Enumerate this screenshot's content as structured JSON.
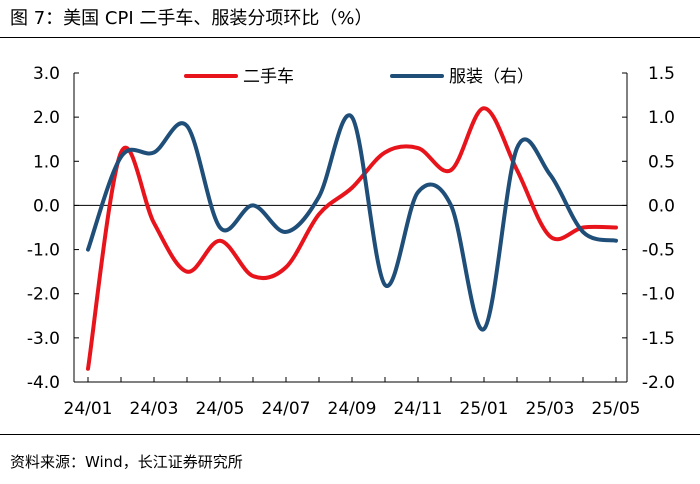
{
  "title": "图 7：美国 CPI 二手车、服装分项环比（%）",
  "source": "资料来源：Wind，长江证券研究所",
  "chart_data": {
    "type": "line",
    "title": "图 7：美国 CPI 二手车、服装分项环比（%）",
    "x": [
      "24/01",
      "24/02",
      "24/03",
      "24/04",
      "24/05",
      "24/06",
      "24/07",
      "24/08",
      "24/09",
      "24/10",
      "24/11",
      "24/12",
      "25/01",
      "25/02",
      "25/03",
      "25/04",
      "25/05"
    ],
    "x_tick_labels": [
      "24/01",
      "24/03",
      "24/05",
      "24/07",
      "24/09",
      "24/11",
      "25/01",
      "25/03",
      "25/05"
    ],
    "left_axis": {
      "ylim": [
        -4.0,
        3.0
      ],
      "ticks": [
        "3.0",
        "2.0",
        "1.0",
        "0.0",
        "-1.0",
        "-2.0",
        "-3.0",
        "-4.0"
      ]
    },
    "right_axis": {
      "ylim": [
        -2.0,
        1.5
      ],
      "ticks": [
        "1.5",
        "1.0",
        "0.5",
        "0.0",
        "-0.5",
        "-1.0",
        "-1.5",
        "-2.0"
      ]
    },
    "series": [
      {
        "name": "二手车",
        "axis": "left",
        "color": "#e8141c",
        "values": [
          -3.7,
          1.2,
          -0.4,
          -1.5,
          -0.8,
          -1.6,
          -1.4,
          -0.2,
          0.4,
          1.2,
          1.3,
          0.8,
          2.2,
          0.8,
          -0.7,
          -0.5,
          -0.5
        ]
      },
      {
        "name": "服装（右）",
        "axis": "right",
        "color": "#1f4e79",
        "values": [
          -0.5,
          0.55,
          0.6,
          0.9,
          -0.25,
          0.0,
          -0.3,
          0.1,
          1.0,
          -0.9,
          0.15,
          0.0,
          -1.4,
          0.65,
          0.35,
          -0.3,
          -0.4
        ]
      }
    ],
    "legend": [
      "二手车",
      "服装（右）"
    ],
    "legend_position": "top"
  }
}
